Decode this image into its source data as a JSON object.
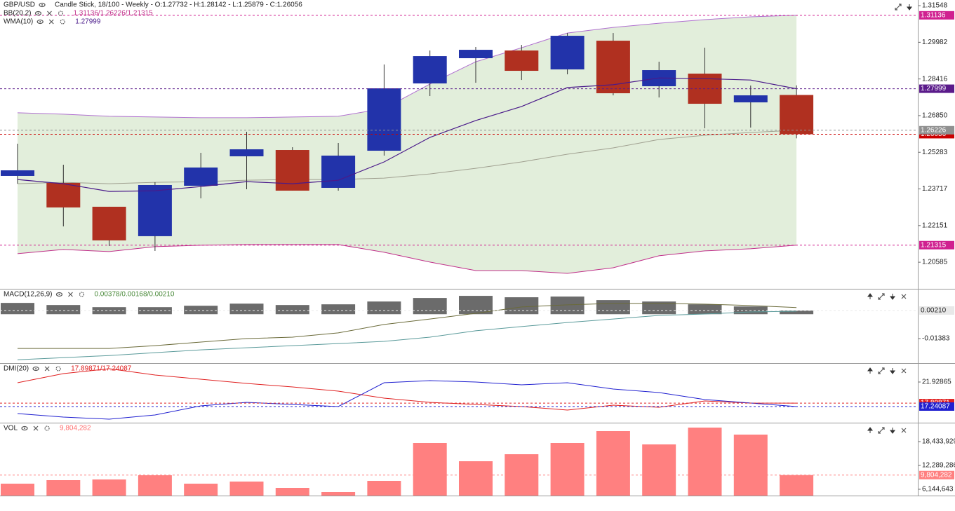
{
  "chart_data": [
    {
      "type": "candlestick",
      "title": "GBP/USD",
      "subtitle": "Candle Stick, 18/100 - Weekly - O:1.27732 - H:1.28142 - L:1.25879 - C:1.26056",
      "open": [
        1.24273,
        1.23973,
        1.22956,
        1.21698,
        1.23853,
        1.25111,
        1.2538,
        1.23764,
        1.2535,
        1.28225,
        1.29303,
        1.29632,
        1.28824,
        1.30051,
        1.28105,
        1.28644,
        1.27416,
        1.27732
      ],
      "high": [
        1.2565,
        1.24752,
        1.22956,
        1.24003,
        1.25261,
        1.26159,
        1.255,
        1.2568,
        1.29033,
        1.29632,
        1.29782,
        1.29871,
        1.3038,
        1.3038,
        1.29153,
        1.29752,
        1.28135,
        1.28142
      ],
      "low": [
        1.23943,
        1.22117,
        1.21279,
        1.21069,
        1.23315,
        1.23704,
        1.23644,
        1.23644,
        1.25141,
        1.27686,
        1.28255,
        1.28374,
        1.28614,
        1.27716,
        1.27626,
        1.26309,
        1.26339,
        1.25879
      ],
      "close": [
        1.24512,
        1.22926,
        1.21518,
        1.23883,
        1.24632,
        1.2541,
        1.23644,
        1.25141,
        1.28015,
        1.29392,
        1.29662,
        1.28764,
        1.30261,
        1.27806,
        1.28794,
        1.27356,
        1.27716,
        1.26056
      ],
      "up_color": "#2233aa",
      "down_color": "#b03020",
      "overlays": [
        {
          "name": "BB(20,2)",
          "value_text": "1.31136/1.26226/1.21315",
          "value_color": "#c0308a",
          "fill": "#e2eedb",
          "colors": [
            "#b070d0",
            "#a0a090",
            "#c0308a"
          ],
          "upper": [
            1.2697,
            1.2691,
            1.2682,
            1.2679,
            1.2676,
            1.2676,
            1.2679,
            1.2682,
            1.2715,
            1.282,
            1.2915,
            1.2975,
            1.3038,
            1.3062,
            1.308,
            1.3095,
            1.3107,
            1.31136
          ],
          "middle": [
            1.2394,
            1.24,
            1.2394,
            1.24,
            1.2403,
            1.2409,
            1.2412,
            1.2412,
            1.2418,
            1.2436,
            1.246,
            1.2487,
            1.252,
            1.2547,
            1.2583,
            1.2601,
            1.2613,
            1.26226
          ],
          "lower": [
            1.2095,
            1.2113,
            1.2104,
            1.2125,
            1.2131,
            1.2134,
            1.2134,
            1.2134,
            1.2101,
            1.2059,
            1.2023,
            1.2023,
            1.2011,
            1.2035,
            1.2086,
            1.2107,
            1.2116,
            1.21315
          ]
        },
        {
          "name": "WMA(10)",
          "value_text": "1.27999",
          "value_color": "#4a1a8a",
          "color": "#4a1a8a",
          "values": [
            1.2412,
            1.2394,
            1.2361,
            1.2364,
            1.2382,
            1.2403,
            1.2394,
            1.2409,
            1.2487,
            1.2592,
            1.2664,
            1.2724,
            1.2805,
            1.2817,
            1.2846,
            1.2843,
            1.2837,
            1.27999
          ]
        }
      ],
      "ylim": [
        1.1945,
        1.3179
      ],
      "yticks": [
        1.31548,
        1.29982,
        1.28416,
        {
          "value": 1.2685,
          "label": "1.26850"
        },
        1.25283,
        1.23717,
        1.22151,
        1.20585
      ],
      "markers": [
        {
          "value": 1.31136,
          "color": "#d02090"
        },
        {
          "value": 1.27999,
          "color": "#5a1a8a"
        },
        {
          "value": 1.26056,
          "color": "#cc0000"
        },
        {
          "value": 1.26226,
          "color": "#909090"
        },
        {
          "value": 1.21315,
          "color": "#d02090"
        }
      ]
    },
    {
      "type": "macd",
      "title": "MACD(12,26,9)",
      "value_text": "0.00378/0.00168/0.00210",
      "value_color": "#4a8a3a",
      "histogram": {
        "color": "#6b6b6b",
        "values": [
          0.0064,
          0.0052,
          0.004,
          0.004,
          0.0048,
          0.006,
          0.0052,
          0.0056,
          0.0072,
          0.0092,
          0.0104,
          0.0096,
          0.01,
          0.008,
          0.0072,
          0.0056,
          0.0044,
          0.0021
        ]
      },
      "series": [
        {
          "color": "#6b6b3a",
          "values": [
            -0.0194,
            -0.0194,
            -0.0194,
            -0.0178,
            -0.0158,
            -0.0138,
            -0.013,
            -0.0106,
            -0.0058,
            -0.0027,
            0.0005,
            0.0041,
            0.0053,
            0.0061,
            0.0061,
            0.0057,
            0.0049,
            0.00378
          ]
        },
        {
          "color": "#5a9a9a",
          "values": [
            -0.0258,
            -0.0246,
            -0.0234,
            -0.0218,
            -0.0202,
            -0.019,
            -0.0178,
            -0.0166,
            -0.0154,
            -0.013,
            -0.0094,
            -0.007,
            -0.0047,
            -0.0027,
            -0.0007,
            0.0001,
            0.0013,
            0.00168
          ]
        }
      ],
      "ylim": [
        -0.0277,
        0.014
      ],
      "yticks": [
        -0.01383
      ],
      "markers": [
        {
          "value": 0.0021,
          "label": "0.00210",
          "color": "#e8e8e8",
          "text_color": "#222222"
        }
      ]
    },
    {
      "type": "line",
      "title": "DMI(20)",
      "value_text": "17.89871/17.24087",
      "value_color": "#e02020",
      "series": [
        {
          "color": "#e02020",
          "values": [
            21.79,
            23.53,
            24.47,
            23.27,
            22.46,
            21.66,
            20.99,
            20.19,
            18.85,
            18.04,
            17.64,
            17.24,
            16.57,
            17.51,
            17.11,
            18.31,
            17.91,
            17.89871
          ]
        },
        {
          "color": "#2020d0",
          "values": [
            15.9,
            15.23,
            14.83,
            15.63,
            17.37,
            18.04,
            17.64,
            17.24,
            21.79,
            22.2,
            21.93,
            21.39,
            21.79,
            20.59,
            19.92,
            18.58,
            17.91,
            17.24087
          ]
        }
      ],
      "ylim": [
        14.16,
        25.41
      ],
      "yticks": [
        21.92865
      ],
      "markers": [
        {
          "value": 17.89871,
          "color": "#e02020"
        },
        {
          "value": 17.24087,
          "color": "#2020d0"
        }
      ]
    },
    {
      "type": "bar",
      "title": "VOL",
      "value_text": "9,804,282",
      "value_color": "#ff7070",
      "color": "#ff8080",
      "values": [
        7590000,
        8494000,
        8675000,
        9759000,
        7590000,
        8133000,
        6506000,
        5422000,
        8313000,
        18072000,
        13374000,
        15181000,
        18072000,
        21145000,
        17711000,
        22048000,
        20241000,
        9804282
      ],
      "ylim": [
        4518000,
        23133000
      ],
      "yticks": [
        {
          "value": 6144643,
          "label": "6,144,643"
        },
        {
          "value": 12289286,
          "label": "12,289,286"
        },
        {
          "value": 18433929,
          "label": "18,433,929"
        }
      ],
      "markers": [
        {
          "value": 9804282,
          "label": "9,804,282",
          "color": "#ff8080"
        }
      ]
    }
  ]
}
